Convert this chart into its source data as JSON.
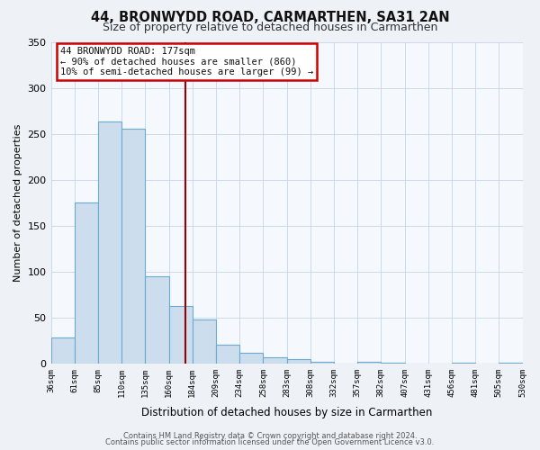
{
  "title": "44, BRONWYDD ROAD, CARMARTHEN, SA31 2AN",
  "subtitle": "Size of property relative to detached houses in Carmarthen",
  "xlabel": "Distribution of detached houses by size in Carmarthen",
  "ylabel": "Number of detached properties",
  "bar_values": [
    28,
    175,
    263,
    255,
    95,
    62,
    48,
    20,
    12,
    7,
    5,
    2,
    0,
    2,
    1,
    0,
    0,
    1,
    0,
    1
  ],
  "bin_labels": [
    "36sqm",
    "61sqm",
    "85sqm",
    "110sqm",
    "135sqm",
    "160sqm",
    "184sqm",
    "209sqm",
    "234sqm",
    "258sqm",
    "283sqm",
    "308sqm",
    "332sqm",
    "357sqm",
    "382sqm",
    "407sqm",
    "431sqm",
    "456sqm",
    "481sqm",
    "505sqm",
    "530sqm"
  ],
  "bar_color": "#ccdded",
  "bar_edge_color": "#6aaad4",
  "vline_color": "#990000",
  "annotation_title": "44 BRONWYDD ROAD: 177sqm",
  "annotation_line1": "← 90% of detached houses are smaller (860)",
  "annotation_line2": "10% of semi-detached houses are larger (99) →",
  "annotation_box_color": "#cc0000",
  "ylim": [
    0,
    350
  ],
  "yticks": [
    0,
    50,
    100,
    150,
    200,
    250,
    300,
    350
  ],
  "footer1": "Contains HM Land Registry data © Crown copyright and database right 2024.",
  "footer2": "Contains public sector information licensed under the Open Government Licence v3.0.",
  "bg_color": "#eef2f7",
  "plot_bg_color": "#f5f8fd",
  "grid_color": "#c5d5e8"
}
